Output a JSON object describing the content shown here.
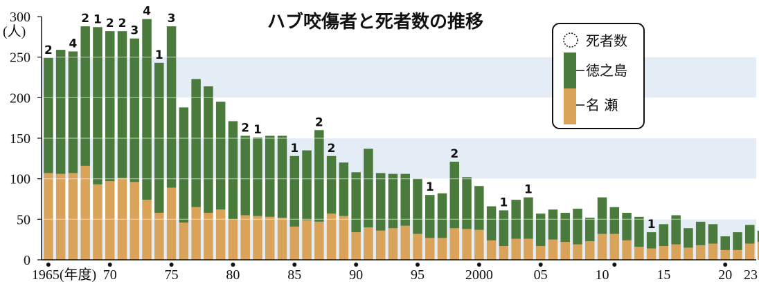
{
  "chart_data": {
    "type": "bar",
    "stacked": true,
    "title": "ハブ咬傷者と死者数の推移",
    "ylabel_value": "300",
    "ylabel_unit": "(人)",
    "xlabel_unit": "(年度)",
    "ylim": [
      0,
      300
    ],
    "yticks": [
      0,
      50,
      100,
      150,
      200,
      250,
      300
    ],
    "grid": "alternating horizontal bands",
    "legend_position": "top-right",
    "legend": {
      "deaths": "死者数",
      "tokunoshima": "徳之島",
      "naze": "名 瀬"
    },
    "colors": {
      "tokunoshima": "#4a7a3c",
      "naze": "#d9a35a",
      "band": "#e4ecf6",
      "outline": "#ffffff"
    },
    "x": [
      1965,
      1966,
      1967,
      1968,
      1969,
      1970,
      1971,
      1972,
      1973,
      1974,
      1975,
      1976,
      1977,
      1978,
      1979,
      1980,
      1981,
      1982,
      1983,
      1984,
      1985,
      1986,
      1987,
      1988,
      1989,
      1990,
      1991,
      1992,
      1993,
      1994,
      1995,
      1996,
      1997,
      1998,
      1999,
      2000,
      2001,
      2002,
      2003,
      2004,
      2005,
      2006,
      2007,
      2008,
      2009,
      2010,
      2011,
      2012,
      2013,
      2014,
      2015,
      2016,
      2017,
      2018,
      2019,
      2020,
      2021,
      2022,
      2023
    ],
    "x_tick_labels": [
      {
        "year": 1965,
        "label": "1965"
      },
      {
        "year": 1970,
        "label": "70"
      },
      {
        "year": 1975,
        "label": "75"
      },
      {
        "year": 1980,
        "label": "80"
      },
      {
        "year": 1985,
        "label": "85"
      },
      {
        "year": 1990,
        "label": "90"
      },
      {
        "year": 1995,
        "label": "95"
      },
      {
        "year": 2000,
        "label": "2000"
      },
      {
        "year": 2005,
        "label": "05"
      },
      {
        "year": 2010,
        "label": "10"
      },
      {
        "year": 2015,
        "label": "15"
      },
      {
        "year": 2020,
        "label": "20"
      },
      {
        "year": 2023,
        "label": "23"
      }
    ],
    "x_tick_dots": [
      1965,
      1970,
      1975,
      1980,
      1985,
      1990,
      1995,
      2000,
      2005,
      2011,
      2020,
      2023
    ],
    "series": [
      {
        "name": "名 瀬",
        "values": [
          107,
          106,
          107,
          116,
          93,
          97,
          101,
          96,
          74,
          58,
          89,
          46,
          65,
          58,
          62,
          50,
          55,
          54,
          53,
          52,
          41,
          49,
          47,
          57,
          54,
          34,
          40,
          36,
          39,
          42,
          32,
          27,
          27,
          39,
          38,
          37,
          24,
          17,
          26,
          26,
          17,
          25,
          22,
          19,
          23,
          32,
          32,
          24,
          16,
          14,
          17,
          19,
          15,
          18,
          20,
          12,
          12,
          20,
          22
        ]
      },
      {
        "name": "徳之島",
        "values": [
          142,
          153,
          150,
          172,
          194,
          185,
          181,
          177,
          223,
          185,
          199,
          142,
          158,
          156,
          133,
          121,
          98,
          97,
          100,
          101,
          87,
          86,
          113,
          71,
          66,
          74,
          97,
          71,
          67,
          64,
          68,
          53,
          55,
          82,
          64,
          54,
          42,
          44,
          48,
          51,
          40,
          37,
          36,
          44,
          29,
          45,
          33,
          34,
          37,
          20,
          27,
          36,
          24,
          29,
          24,
          17,
          22,
          23,
          14
        ]
      }
    ],
    "deaths": [
      {
        "year": 1965,
        "value": 2
      },
      {
        "year": 1967,
        "value": 4
      },
      {
        "year": 1968,
        "value": 2
      },
      {
        "year": 1969,
        "value": 1
      },
      {
        "year": 1970,
        "value": 2
      },
      {
        "year": 1971,
        "value": 2
      },
      {
        "year": 1972,
        "value": 3
      },
      {
        "year": 1973,
        "value": 4
      },
      {
        "year": 1974,
        "value": 1
      },
      {
        "year": 1975,
        "value": 3
      },
      {
        "year": 1981,
        "value": 2
      },
      {
        "year": 1982,
        "value": 1
      },
      {
        "year": 1985,
        "value": 1
      },
      {
        "year": 1987,
        "value": 2
      },
      {
        "year": 1988,
        "value": 2
      },
      {
        "year": 1996,
        "value": 1
      },
      {
        "year": 1998,
        "value": 2
      },
      {
        "year": 2002,
        "value": 1
      },
      {
        "year": 2004,
        "value": 1
      },
      {
        "year": 2014,
        "value": 1
      }
    ]
  }
}
